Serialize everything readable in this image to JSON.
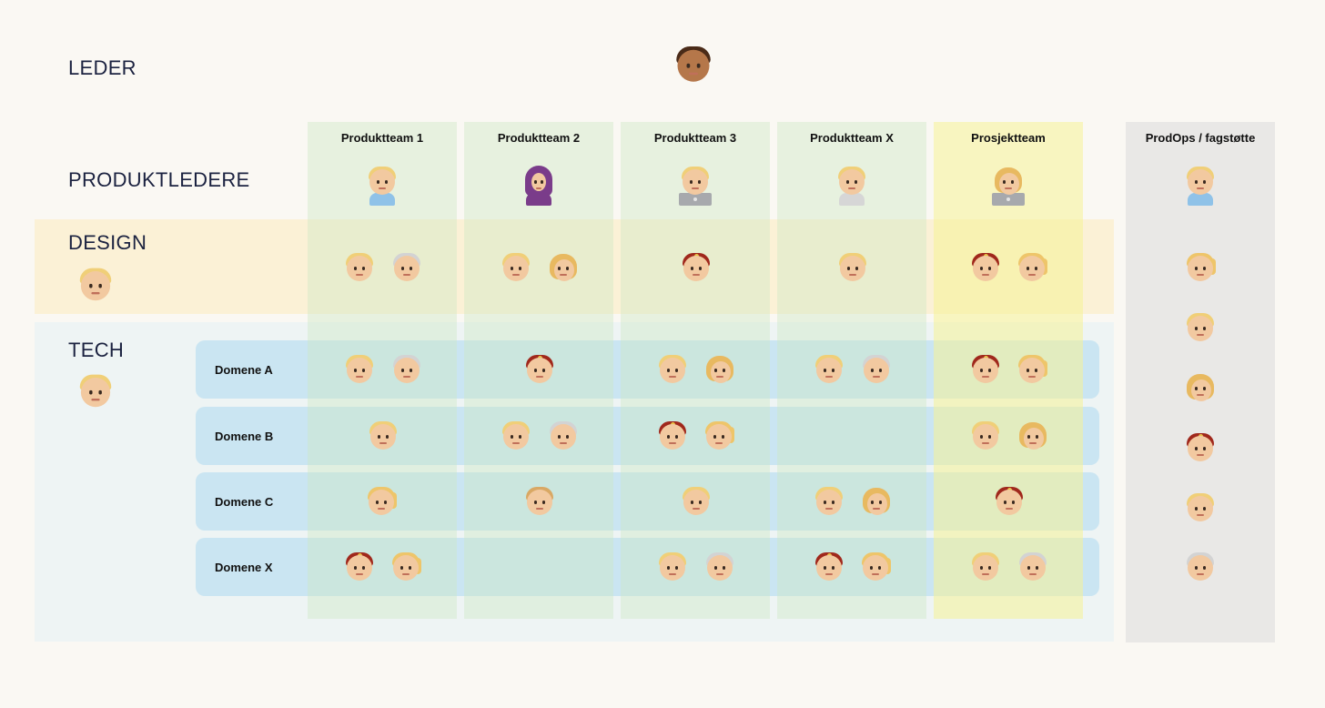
{
  "rows": {
    "leder": "LEDER",
    "produktledere": "PRODUKTLEDERE",
    "design": "DESIGN",
    "tech": "TECH"
  },
  "columns": [
    "Produktteam 1",
    "Produktteam 2",
    "Produktteam 3",
    "Produktteam X",
    "Prosjektteam"
  ],
  "side_column": "ProdOps / fagstøtte",
  "domains": [
    "Domene A",
    "Domene B",
    "Domene C",
    "Domene X"
  ],
  "colors": {
    "background": "#faf8f3",
    "design_band": "#fbf1d6",
    "tech_band": "#eef4f4",
    "team_column": "#cde8c3",
    "project_column": "#f5f296",
    "domain_row": "#bee0f2",
    "side_column": "#e9e8e6"
  }
}
